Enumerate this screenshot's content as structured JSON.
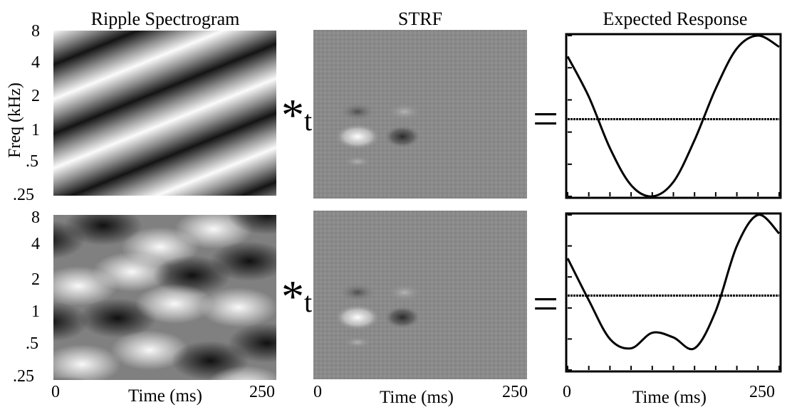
{
  "titles": {
    "spectrogram": "Ripple Spectrogram",
    "strf": "STRF",
    "response": "Expected Response"
  },
  "freq_axis": {
    "label": "Freq (kHz)",
    "ticks": [
      "8",
      "4",
      "2",
      "1",
      ".5",
      ".25"
    ]
  },
  "time_axis": {
    "label": "Time (ms)",
    "start": "0",
    "end": "250"
  },
  "operators": {
    "convolve": "*",
    "convolve_sub": "t",
    "equals": "="
  },
  "colors": {
    "background": "#ffffff",
    "strf_gray": "#8a8a8a",
    "line": "#000000"
  },
  "chart_data": [
    {
      "type": "line",
      "panel": "top-response",
      "x": [
        0,
        25,
        50,
        75,
        100,
        125,
        150,
        175,
        200,
        225,
        250
      ],
      "values": [
        0.87,
        0.62,
        0.3,
        0.07,
        0.0,
        0.09,
        0.35,
        0.67,
        0.92,
        1.0,
        0.93
      ],
      "baseline": 0.48,
      "xlim": [
        0,
        250
      ]
    },
    {
      "type": "line",
      "panel": "bottom-response",
      "x": [
        0,
        25,
        50,
        75,
        100,
        125,
        150,
        175,
        200,
        225,
        250
      ],
      "values": [
        0.72,
        0.45,
        0.2,
        0.14,
        0.24,
        0.21,
        0.14,
        0.38,
        0.8,
        1.0,
        0.88
      ],
      "baseline": 0.48,
      "xlim": [
        0,
        250
      ]
    }
  ]
}
